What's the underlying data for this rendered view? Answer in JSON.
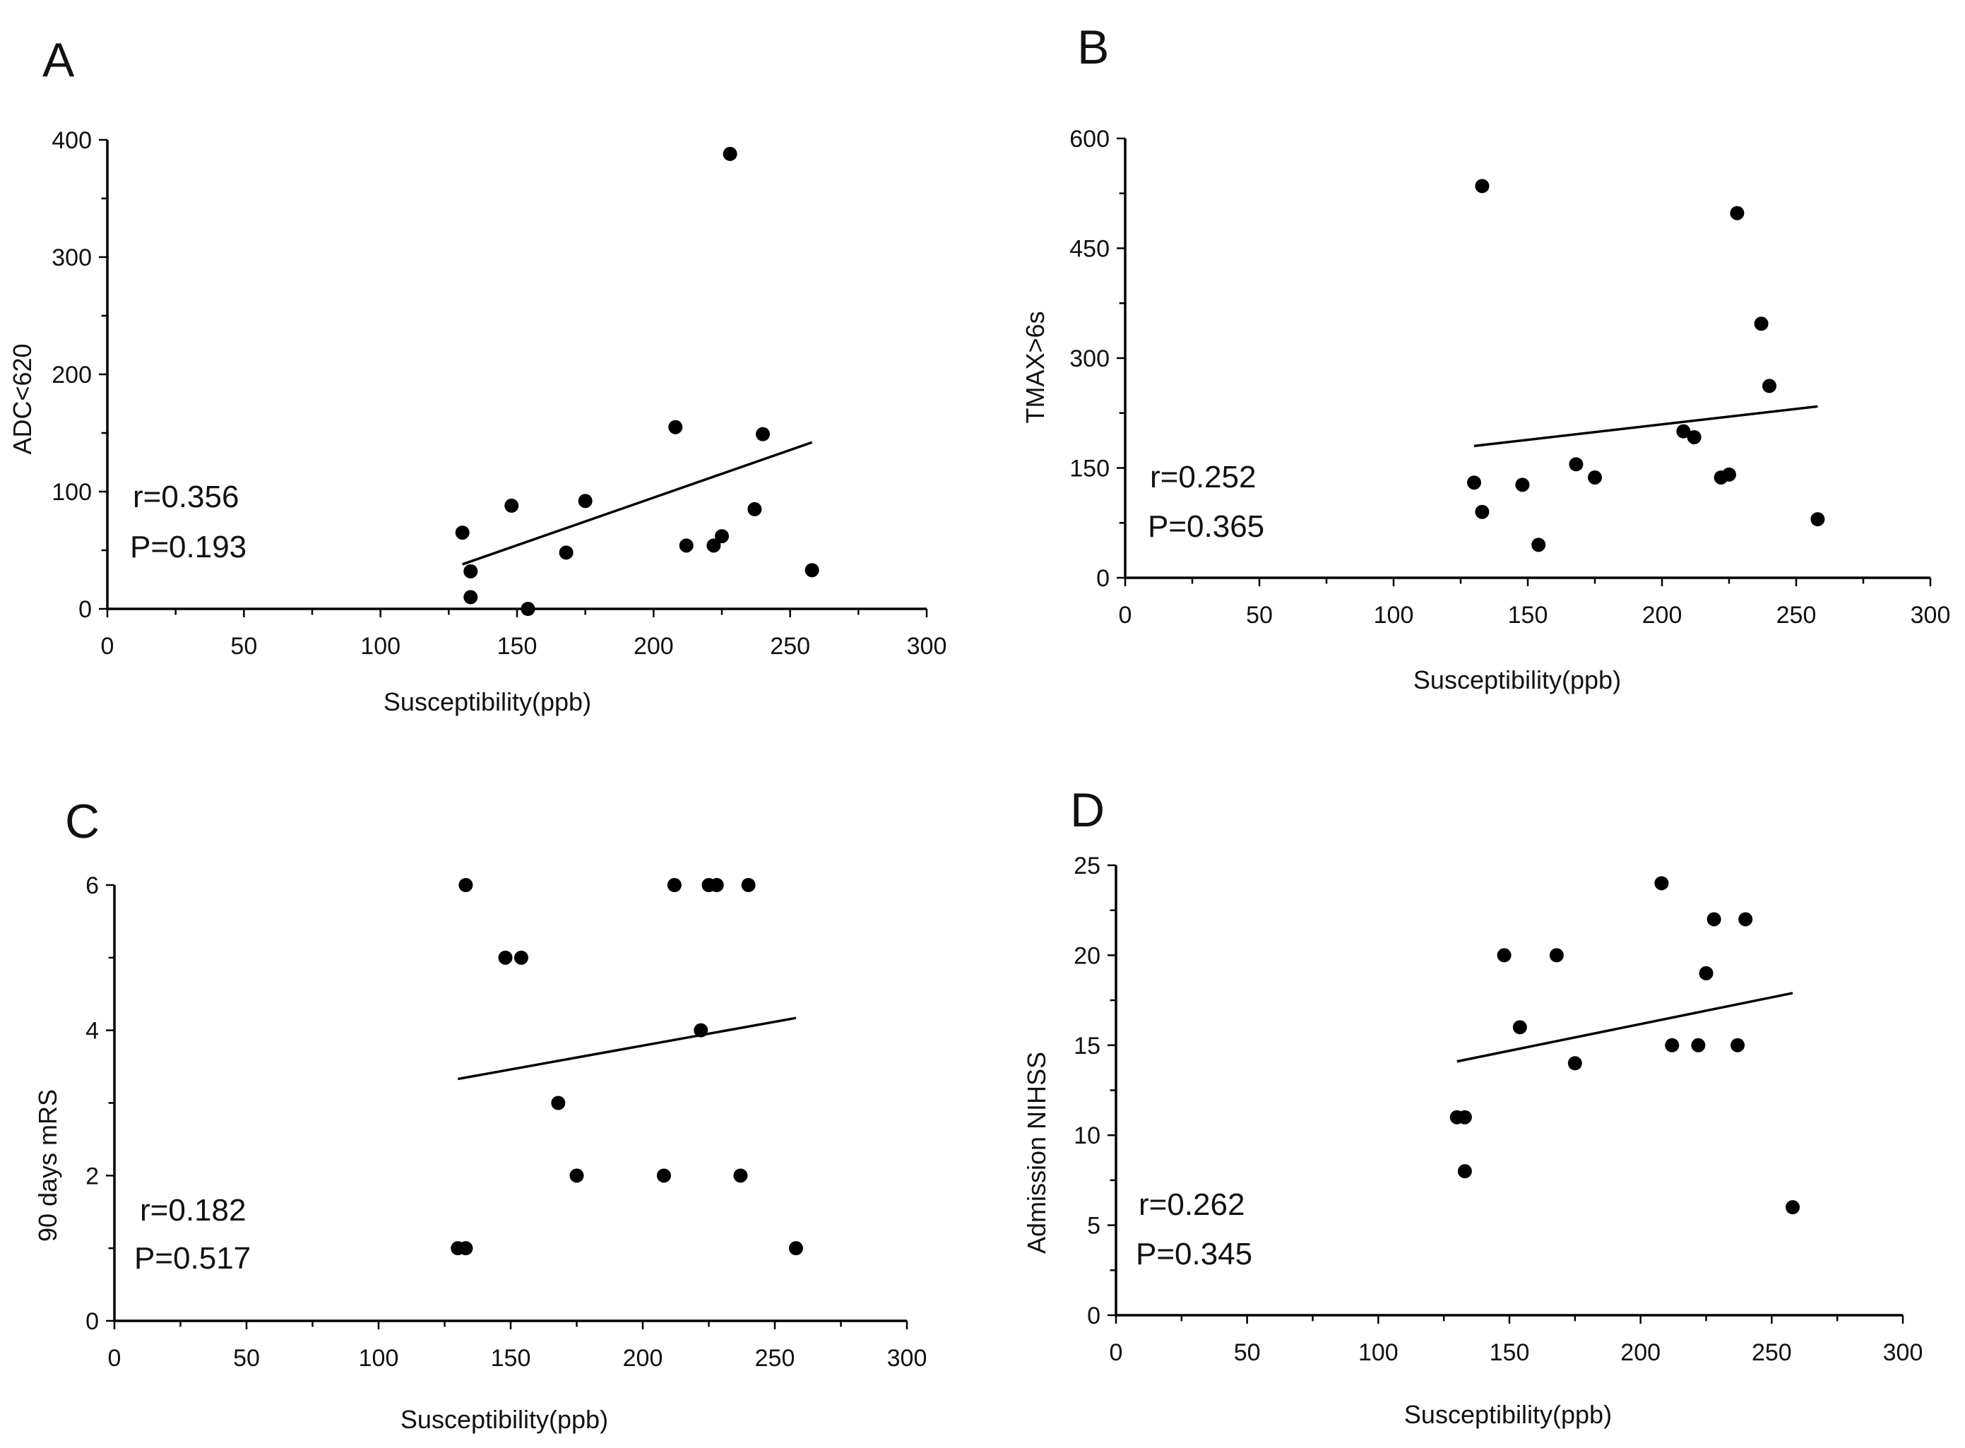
{
  "chart_data": [
    {
      "panel": "A",
      "type": "scatter",
      "xlabel": "Susceptibility(ppb)",
      "ylabel": "ADC<620",
      "xlim": [
        0,
        300
      ],
      "ylim": [
        0,
        400
      ],
      "xticks": [
        0,
        50,
        100,
        150,
        200,
        250,
        300
      ],
      "yticks": [
        0,
        100,
        200,
        300,
        400
      ],
      "stats": {
        "r": "r=0.356",
        "p": "P=0.193"
      },
      "points": [
        [
          130,
          65
        ],
        [
          133,
          10
        ],
        [
          133,
          32
        ],
        [
          148,
          88
        ],
        [
          154,
          0
        ],
        [
          168,
          48
        ],
        [
          175,
          92
        ],
        [
          208,
          155
        ],
        [
          212,
          54
        ],
        [
          222,
          54
        ],
        [
          225,
          62
        ],
        [
          228,
          388
        ],
        [
          237,
          85
        ],
        [
          240,
          149
        ],
        [
          258,
          33
        ]
      ],
      "fit": [
        [
          130,
          38
        ],
        [
          258,
          142
        ]
      ]
    },
    {
      "panel": "B",
      "type": "scatter",
      "xlabel": "Susceptibility(ppb)",
      "ylabel": "TMAX>6s",
      "xlim": [
        0,
        300
      ],
      "ylim": [
        0,
        600
      ],
      "xticks": [
        0,
        50,
        100,
        150,
        200,
        250,
        300
      ],
      "yticks": [
        0,
        150,
        300,
        450,
        600
      ],
      "stats": {
        "r": "r=0.252",
        "p": "P=0.365"
      },
      "points": [
        [
          130,
          130
        ],
        [
          133,
          90
        ],
        [
          133,
          535
        ],
        [
          148,
          127
        ],
        [
          154,
          45
        ],
        [
          168,
          155
        ],
        [
          175,
          137
        ],
        [
          208,
          200
        ],
        [
          212,
          192
        ],
        [
          222,
          137
        ],
        [
          225,
          141
        ],
        [
          228,
          498
        ],
        [
          237,
          347
        ],
        [
          240,
          262
        ],
        [
          258,
          80
        ]
      ],
      "fit": [
        [
          130,
          180
        ],
        [
          258,
          234
        ]
      ]
    },
    {
      "panel": "C",
      "type": "scatter",
      "xlabel": "Susceptibility(ppb)",
      "ylabel": "90 days mRS",
      "xlim": [
        0,
        300
      ],
      "ylim": [
        0,
        6
      ],
      "xticks": [
        0,
        50,
        100,
        150,
        200,
        250,
        300
      ],
      "yticks": [
        0,
        2,
        4,
        6
      ],
      "stats": {
        "r": "r=0.182",
        "p": "P=0.517"
      },
      "points": [
        [
          130,
          1
        ],
        [
          133,
          1
        ],
        [
          133,
          6
        ],
        [
          148,
          5
        ],
        [
          154,
          5
        ],
        [
          168,
          3
        ],
        [
          175,
          2
        ],
        [
          208,
          2
        ],
        [
          212,
          6
        ],
        [
          222,
          4
        ],
        [
          225,
          6
        ],
        [
          228,
          6
        ],
        [
          237,
          2
        ],
        [
          240,
          6
        ],
        [
          258,
          1
        ]
      ],
      "fit": [
        [
          130,
          3.33
        ],
        [
          258,
          4.17
        ]
      ]
    },
    {
      "panel": "D",
      "type": "scatter",
      "xlabel": "Susceptibility(ppb)",
      "ylabel": "Admission NIHSS",
      "xlim": [
        0,
        300
      ],
      "ylim": [
        0,
        25
      ],
      "xticks": [
        0,
        50,
        100,
        150,
        200,
        250,
        300
      ],
      "yticks": [
        0,
        5,
        10,
        15,
        20,
        25
      ],
      "stats": {
        "r": "r=0.262",
        "p": "P=0.345"
      },
      "points": [
        [
          130,
          11
        ],
        [
          133,
          11
        ],
        [
          133,
          8
        ],
        [
          148,
          20
        ],
        [
          154,
          16
        ],
        [
          168,
          20
        ],
        [
          175,
          14
        ],
        [
          208,
          24
        ],
        [
          212,
          15
        ],
        [
          222,
          15
        ],
        [
          225,
          19
        ],
        [
          228,
          22
        ],
        [
          237,
          15
        ],
        [
          240,
          22
        ],
        [
          258,
          6
        ]
      ],
      "fit": [
        [
          130,
          14.1
        ],
        [
          258,
          17.9
        ]
      ]
    }
  ]
}
